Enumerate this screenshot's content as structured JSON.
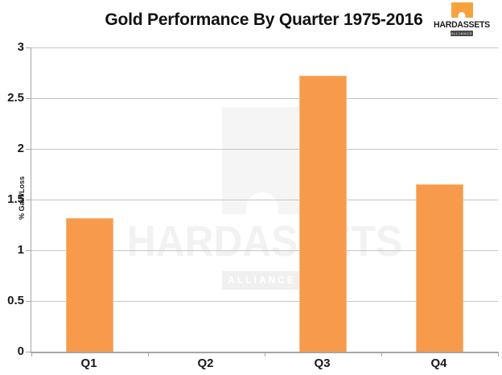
{
  "chart_data": {
    "type": "bar",
    "title": "Gold Performance By Quarter 1975-2016",
    "categories": [
      "Q1",
      "Q2",
      "Q3",
      "Q4"
    ],
    "values": [
      1.32,
      0,
      2.72,
      1.65
    ],
    "xlabel": "",
    "ylabel": "% Gain/Loss",
    "ylim": [
      0,
      3
    ],
    "y_ticks": [
      3,
      2.5,
      2,
      1.5,
      1,
      0.5,
      0
    ],
    "grid": true,
    "legend": "none",
    "bar_color": "#F79A4B",
    "gridline_color": "#C6C6C6",
    "axis_color": "#A6A6A6"
  },
  "logo": {
    "word1": "HARD",
    "word2": "ASSETS",
    "subtitle": "ALLIANCE",
    "square_color": "#F9A13C"
  },
  "watermark": {
    "name": "HARDASSETS",
    "subtitle": "ALLIANCE"
  }
}
